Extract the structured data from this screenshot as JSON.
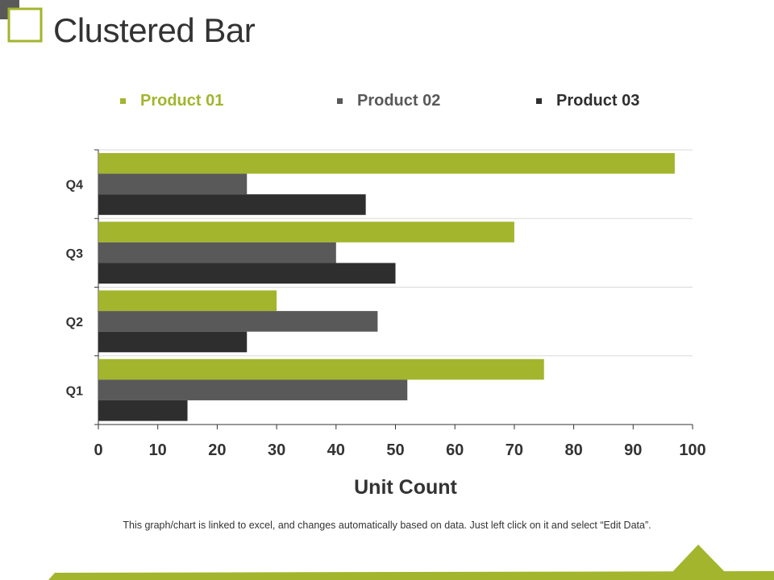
{
  "slide": {
    "title": "Clustered Bar",
    "footnote": "This graph/chart is linked to excel, and changes automatically based on data. Just left click on it and select “Edit Data”."
  },
  "theme": {
    "accent": "#a3b52c",
    "title_color": "#333333",
    "gray_dark": "#2e2e2e",
    "gray_mid": "#595959"
  },
  "chart_data": {
    "type": "bar",
    "orientation": "horizontal",
    "categories": [
      "Q1",
      "Q2",
      "Q3",
      "Q4"
    ],
    "series": [
      {
        "name": "Product 01",
        "color": "#a3b52c",
        "values": [
          75,
          30,
          70,
          97
        ]
      },
      {
        "name": "Product 02",
        "color": "#595959",
        "values": [
          52,
          47,
          40,
          25
        ]
      },
      {
        "name": "Product 03",
        "color": "#2e2e2e",
        "values": [
          15,
          25,
          50,
          45
        ]
      }
    ],
    "xlabel": "Unit Count",
    "ylabel": "",
    "xlim": [
      0,
      100
    ],
    "xticks": [
      0,
      10,
      20,
      30,
      40,
      50,
      60,
      70,
      80,
      90,
      100
    ],
    "grid": true,
    "legend_position": "top"
  }
}
